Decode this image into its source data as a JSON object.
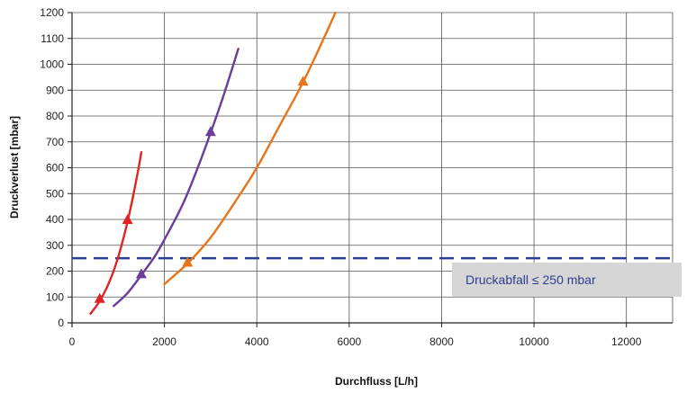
{
  "chart_data": {
    "type": "line",
    "xlabel": "Durchfluss [L/h]",
    "ylabel": "Druckverlust [mbar]",
    "xlim": [
      0,
      13000
    ],
    "ylim": [
      0,
      1200
    ],
    "x_ticks": [
      0,
      2000,
      4000,
      6000,
      8000,
      10000,
      12000
    ],
    "x_tick_labels": [
      "0",
      "2000",
      "4000",
      "6000",
      "8000",
      "10000",
      "12000"
    ],
    "y_ticks": [
      0,
      100,
      200,
      300,
      400,
      500,
      600,
      700,
      800,
      900,
      1000,
      1100,
      1200
    ],
    "y_tick_labels": [
      "0",
      "100",
      "200",
      "300",
      "400",
      "500",
      "600",
      "700",
      "800",
      "900",
      "1000",
      "1100",
      "1200"
    ],
    "grid": true,
    "series": [
      {
        "color": "#e02424",
        "x": [
          400,
          600,
          800,
          1000,
          1200,
          1400,
          1500
        ],
        "y": [
          35,
          85,
          155,
          255,
          390,
          560,
          660
        ],
        "markers": [
          {
            "x": 600,
            "y": 95
          },
          {
            "x": 1200,
            "y": 400
          }
        ]
      },
      {
        "color": "#6a3d9a",
        "x": [
          900,
          1200,
          1500,
          1800,
          2100,
          2400,
          2700,
          3000,
          3300,
          3600
        ],
        "y": [
          65,
          115,
          185,
          260,
          355,
          460,
          590,
          735,
          890,
          1060
        ],
        "markers": [
          {
            "x": 1500,
            "y": 190
          },
          {
            "x": 3000,
            "y": 740
          }
        ]
      },
      {
        "color": "#e8741a",
        "x": [
          2000,
          2500,
          3000,
          3500,
          4000,
          4500,
          5000,
          5500,
          5700
        ],
        "y": [
          150,
          230,
          330,
          460,
          600,
          765,
          930,
          1120,
          1200
        ],
        "markers": [
          {
            "x": 2500,
            "y": 235
          },
          {
            "x": 5000,
            "y": 935
          }
        ]
      }
    ],
    "reference_line": {
      "y": 250,
      "color": "#2a3f8f",
      "style": "dashed"
    },
    "annotation": {
      "text": "Druckabfall ≤ 250 mbar",
      "background": "#d6d6d6",
      "color": "#2a3f8f"
    }
  }
}
